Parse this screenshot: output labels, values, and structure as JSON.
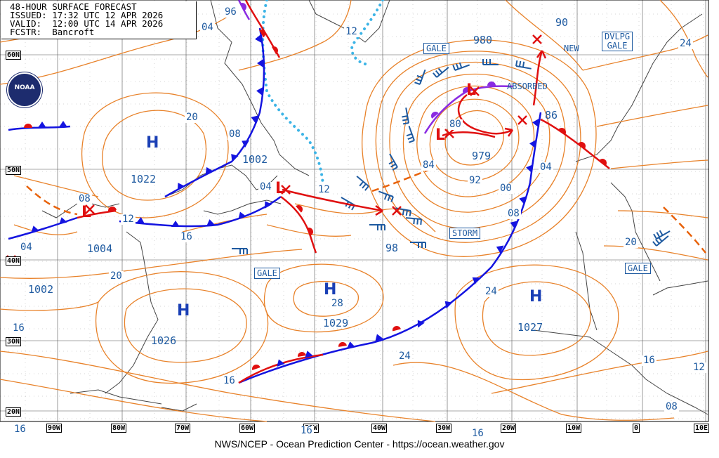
{
  "header": {
    "line1": "48-HOUR SURFACE FORECAST",
    "line2": "ISSUED: 17:32 UTC 12 APR 2026",
    "line3": "VALID:  12:00 UTC 14 APR 2026",
    "line4": "FCSTR:  Bancroft"
  },
  "footer": "NWS/NCEP - Ocean Prediction Center - https://ocean.weather.gov",
  "logo_text": "NOAA",
  "latitudes": [
    "60N",
    "50N",
    "40N",
    "30N",
    "20N"
  ],
  "longitudes": [
    "90W",
    "80W",
    "70W",
    "60W",
    "50W",
    "40W",
    "30W",
    "20W",
    "10W",
    "0",
    "10E"
  ],
  "high_symbol": "H",
  "low_symbol": "L",
  "centers": {
    "high_labrador": "1022",
    "high_bermuda": "1026",
    "high_mid_atlantic": "1029",
    "high_azores": "1027",
    "low_newfoundland": "1002",
    "low_great_lakes": "1004",
    "low_iceland_south": "979",
    "low_great_lakes_west": "1002",
    "low_north_atlantic": "980",
    "low_west_europe": "86",
    "low_forecast_98": "98",
    "low_forecast_90": "90"
  },
  "warnings": {
    "gale_north": "GALE",
    "dvlpg_gale_1": "DVLPG",
    "dvlpg_gale_2": "GALE",
    "storm": "STORM",
    "gale_central": "GALE",
    "gale_east": "GALE"
  },
  "annotations": {
    "absorbed": "ABSORBED",
    "new": "NEW"
  },
  "isobar_labels": {
    "l96": "96",
    "l04_nw": "04",
    "l12_greenland": "12",
    "l24_ne": "24",
    "l20_labrador": "20",
    "l08_labrador": "08",
    "l04_nf": "04",
    "l12_nf": "12",
    "l08_lakes": "08",
    "l12_lakes": "12",
    "l16_coast": "16",
    "l04_west": "04",
    "l20_w": "20",
    "l16_w": "16",
    "l28": "28",
    "l24_c": "24",
    "l24_e": "24",
    "l84": "84",
    "l80": "80",
    "l92": "92",
    "l00": "00",
    "l08_c": "08",
    "l04_c": "04",
    "l20_eu": "20",
    "l16_e": "16",
    "l12_e": "12",
    "l08_e": "08",
    "l16_s1": "16",
    "l16_s2": "16",
    "l16_sw": "16",
    "l16_sw2": "16"
  },
  "colors": {
    "isobar": "#e8822a",
    "grid": "#555555",
    "coast": "#444444",
    "cold_front": "#1414e0",
    "warm_front": "#e01010",
    "occluded": "#8a2be2",
    "ice_edge": "#3cb4e6",
    "trough": "#e8620a",
    "label_blue": "#1e5aa0",
    "high": "#1a3fb5",
    "low": "#e01010"
  }
}
